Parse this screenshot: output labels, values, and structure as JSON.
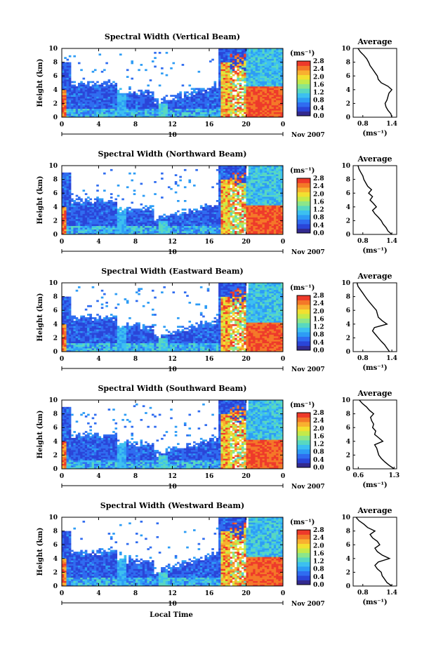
{
  "figure": {
    "xlabel": "Local Time",
    "date_label": "Nov 2007",
    "day_marker": "10",
    "units": "(ms⁻¹)",
    "profile_title": "Average"
  },
  "colors": {
    "scale": [
      "#332a8f",
      "#2a45d8",
      "#2f6cf0",
      "#2d9cf5",
      "#3cc0f0",
      "#58d8c0",
      "#8ce68a",
      "#c4ea4a",
      "#f2e030",
      "#f8b030",
      "#f47828",
      "#ee3a2a"
    ]
  },
  "chart_data": [
    {
      "type": "heatmap",
      "title": "Spectral Width (Vertical Beam)",
      "ylabel": "Height (km)",
      "xlim": [
        0,
        24
      ],
      "ylim": [
        0,
        10
      ],
      "x_ticks": [
        "0",
        "4",
        "8",
        "12",
        "16",
        "20",
        "0"
      ],
      "y_ticks": [
        "0",
        "2",
        "4",
        "6",
        "8",
        "10"
      ],
      "colorbar_ticks": [
        "0.0",
        "0.4",
        "0.8",
        "1.2",
        "1.6",
        "2.0",
        "2.4",
        "2.8"
      ],
      "colorbar_range": [
        0.0,
        2.8
      ],
      "profile": {
        "title": "Average",
        "xlabel": "(ms⁻¹)",
        "x_ticks": [
          "0.8",
          "1.4"
        ],
        "xlim": [
          0.6,
          1.5
        ],
        "heights": [
          0,
          0.5,
          1,
          1.5,
          2,
          2.5,
          3,
          3.5,
          4,
          4.5,
          5,
          5.5,
          6,
          6.5,
          7,
          7.5,
          8,
          8.5,
          9,
          9.5,
          10
        ],
        "values": [
          1.4,
          1.38,
          1.32,
          1.28,
          1.26,
          1.3,
          1.32,
          1.34,
          1.4,
          1.32,
          1.18,
          1.12,
          1.1,
          1.05,
          1.0,
          0.95,
          0.92,
          0.88,
          0.82,
          0.75,
          0.7
        ]
      }
    },
    {
      "type": "heatmap",
      "title": "Spectral Width (Northward Beam)",
      "ylabel": "Height (km)",
      "xlim": [
        0,
        24
      ],
      "ylim": [
        0,
        10
      ],
      "x_ticks": [
        "0",
        "4",
        "8",
        "12",
        "16",
        "20",
        "0"
      ],
      "y_ticks": [
        "0",
        "2",
        "4",
        "6",
        "8",
        "10"
      ],
      "colorbar_ticks": [
        "0.0",
        "0.4",
        "0.8",
        "1.2",
        "1.6",
        "2.0",
        "2.4",
        "2.8"
      ],
      "colorbar_range": [
        0.0,
        2.8
      ],
      "profile": {
        "title": "Average",
        "xlabel": "(ms⁻¹)",
        "x_ticks": [
          "0.8",
          "1.4"
        ],
        "xlim": [
          0.6,
          1.5
        ],
        "heights": [
          0,
          0.5,
          1,
          1.5,
          2,
          2.5,
          3,
          3.5,
          4,
          4.5,
          5,
          5.5,
          6,
          6.5,
          7,
          7.5,
          8,
          8.5,
          9,
          9.5,
          10
        ],
        "values": [
          1.4,
          1.32,
          1.28,
          1.22,
          1.18,
          1.12,
          1.05,
          1.0,
          1.08,
          1.02,
          0.95,
          1.0,
          0.92,
          0.98,
          0.9,
          0.86,
          0.82,
          0.8,
          0.76,
          0.72,
          0.7
        ]
      }
    },
    {
      "type": "heatmap",
      "title": "Spectral Width (Eastward Beam)",
      "ylabel": "Height (km)",
      "xlim": [
        0,
        24
      ],
      "ylim": [
        0,
        10
      ],
      "x_ticks": [
        "0",
        "4",
        "8",
        "12",
        "16",
        "20",
        "0"
      ],
      "y_ticks": [
        "0",
        "2",
        "4",
        "6",
        "8",
        "10"
      ],
      "colorbar_ticks": [
        "0.0",
        "0.4",
        "0.8",
        "1.2",
        "1.6",
        "2.0",
        "2.4",
        "2.8"
      ],
      "colorbar_range": [
        0.0,
        2.8
      ],
      "profile": {
        "title": "Average",
        "xlabel": "(ms⁻¹)",
        "x_ticks": [
          "0.8",
          "1.4"
        ],
        "xlim": [
          0.6,
          1.5
        ],
        "heights": [
          0,
          0.5,
          1,
          1.5,
          2,
          2.5,
          3,
          3.5,
          4,
          4.5,
          5,
          5.5,
          6,
          6.5,
          7,
          7.5,
          8,
          8.5,
          9,
          9.5,
          10
        ],
        "values": [
          1.35,
          1.3,
          1.25,
          1.18,
          1.12,
          1.06,
          1.0,
          1.04,
          1.3,
          1.2,
          1.12,
          1.1,
          1.08,
          1.02,
          0.96,
          0.9,
          0.85,
          0.8,
          0.75,
          0.7,
          0.68
        ]
      }
    },
    {
      "type": "heatmap",
      "title": "Spectral Width (Southward Beam)",
      "ylabel": "Height (km)",
      "xlim": [
        0,
        24
      ],
      "ylim": [
        0,
        10
      ],
      "x_ticks": [
        "0",
        "4",
        "8",
        "12",
        "16",
        "20",
        "0"
      ],
      "y_ticks": [
        "0",
        "2",
        "4",
        "6",
        "8",
        "10"
      ],
      "colorbar_ticks": [
        "0.0",
        "0.4",
        "0.8",
        "1.2",
        "1.6",
        "2.0",
        "2.4",
        "2.8"
      ],
      "colorbar_range": [
        0.0,
        2.8
      ],
      "profile": {
        "title": "Average",
        "xlabel": "(ms⁻¹)",
        "x_ticks": [
          "0.6",
          "1.3"
        ],
        "xlim": [
          0.5,
          1.35
        ],
        "heights": [
          0,
          0.5,
          1,
          1.5,
          2,
          2.5,
          3,
          3.5,
          4,
          4.5,
          5,
          5.5,
          6,
          6.5,
          7,
          7.5,
          8,
          8.5,
          9,
          9.5,
          10
        ],
        "values": [
          1.3,
          1.2,
          1.12,
          1.05,
          1.0,
          0.98,
          0.96,
          0.92,
          1.08,
          1.0,
          0.92,
          0.94,
          0.88,
          0.9,
          0.86,
          0.84,
          0.9,
          0.82,
          0.76,
          0.68,
          0.62
        ]
      }
    },
    {
      "type": "heatmap",
      "title": "Spectral Width (Westward Beam)",
      "ylabel": "Height (km)",
      "xlim": [
        0,
        24
      ],
      "ylim": [
        0,
        10
      ],
      "x_ticks": [
        "0",
        "4",
        "8",
        "12",
        "16",
        "20",
        "0"
      ],
      "y_ticks": [
        "0",
        "2",
        "4",
        "6",
        "8",
        "10"
      ],
      "colorbar_ticks": [
        "0.0",
        "0.4",
        "0.8",
        "1.2",
        "1.6",
        "2.0",
        "2.4",
        "2.8"
      ],
      "colorbar_range": [
        0.0,
        2.8
      ],
      "profile": {
        "title": "Average",
        "xlabel": "(ms⁻¹)",
        "x_ticks": [
          "0.8",
          "1.4"
        ],
        "xlim": [
          0.6,
          1.5
        ],
        "heights": [
          0,
          0.5,
          1,
          1.5,
          2,
          2.5,
          3,
          3.5,
          4,
          4.5,
          5,
          5.5,
          6,
          6.5,
          7,
          7.5,
          8,
          8.5,
          9,
          9.5,
          10
        ],
        "values": [
          1.4,
          1.3,
          1.25,
          1.2,
          1.18,
          1.1,
          1.05,
          1.12,
          1.35,
          1.2,
          1.1,
          1.05,
          1.15,
          1.1,
          1.0,
          0.95,
          1.05,
          0.9,
          0.82,
          0.72,
          0.66
        ]
      }
    }
  ]
}
